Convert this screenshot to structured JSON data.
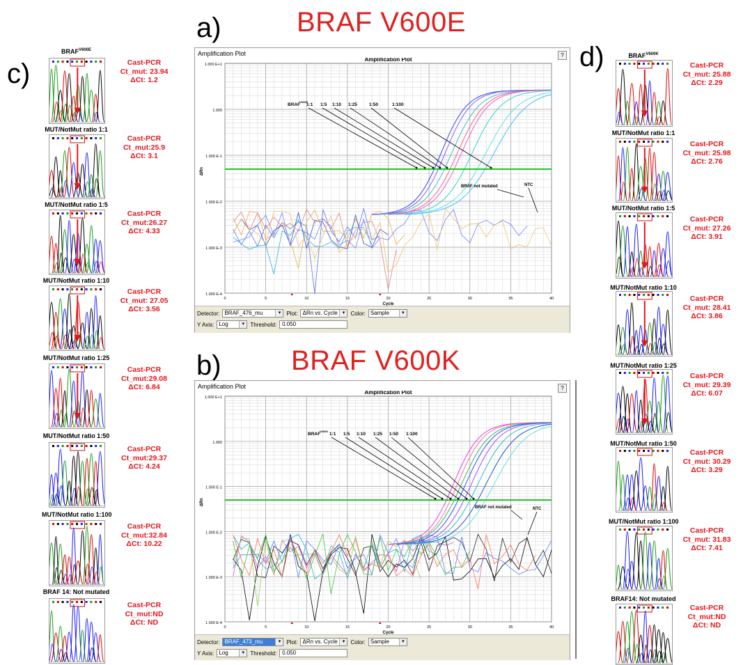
{
  "titles": {
    "a_letter": "a)",
    "a_title": "BRAF V600E",
    "b_letter": "b)",
    "b_title": "BRAF V600K",
    "c_letter": "c)",
    "d_letter": "d)"
  },
  "colors": {
    "red": "#e3161c",
    "threshold_green": "#1fbf1f"
  },
  "plot_a": {
    "window_title": "Amplification Plot",
    "plot_title": "Amplification Plot",
    "help": "?",
    "ylabel": "ΔRn",
    "xlabel": "Cycle",
    "yticks": [
      "1.000 E+1",
      "1.000",
      "1.000 E-1",
      "1.000 E-2",
      "1.000 E-3",
      "1.000 E-4"
    ],
    "xticks": [
      "0",
      "5",
      "10",
      "15",
      "20",
      "25",
      "30",
      "35",
      "40"
    ],
    "ann_braf": "BRAF",
    "ann_sup": "V600E",
    "ratios": [
      "1:1",
      "1:5",
      "1:10",
      "1:25",
      "1:50",
      "1:100"
    ],
    "not_mutated": "BRAF not mutated",
    "ntc": "NTC",
    "detector_label": "Detector:",
    "detector_value": "BRAF_476_mu",
    "plot_label": "Plot:",
    "plot_value": "ΔRn vs. Cycle",
    "color_label": "Color:",
    "color_value": "Sample",
    "yaxis_label": "Y Axis:",
    "yaxis_value": "Log",
    "threshold_label": "Threshold:",
    "threshold_value": "0.050"
  },
  "plot_b": {
    "window_title": "Amplification Plot",
    "plot_title": "Amplification Plot",
    "help": "?",
    "ylabel": "ΔRn",
    "xlabel": "Cycle",
    "yticks": [
      "1.000 E+1",
      "1.000",
      "1.000 E-1",
      "1.000 E-2",
      "1.000 E-3",
      "1.000 E-4"
    ],
    "xticks": [
      "0",
      "5",
      "10",
      "15",
      "20",
      "25",
      "30",
      "35",
      "40"
    ],
    "ann_braf": "BRAF",
    "ann_sup": "V600K",
    "ratios": [
      "1:1",
      "1:5",
      "1:10",
      "1:25",
      "1:50",
      "1:100"
    ],
    "not_mutated": "BRAF not mutated",
    "ntc": "NTC",
    "detector_label": "Detector:",
    "detector_value": "BRAF_473_mu",
    "plot_label": "Plot:",
    "plot_value": "ΔRn vs. Cycle",
    "color_label": "Color:",
    "color_value": "Sample",
    "yaxis_label": "Y Axis:",
    "yaxis_value": "Log",
    "threshold_label": "Threshold:",
    "threshold_value": "0.050"
  },
  "panel_c": [
    {
      "title": "BRAF",
      "sup": "V600E",
      "line1": "Cast-PCR",
      "line2": "Ct_mut: 23.94",
      "line3": "ΔCt: 1.2"
    },
    {
      "title": "MUT/NotMut ratio 1:1",
      "sup": "",
      "line1": "Cast-PCR",
      "line2": "Ct_mut:25.9",
      "line3": "ΔCt: 3.1"
    },
    {
      "title": "MUT/NotMut ratio 1:5",
      "sup": "",
      "line1": "Cast-PCR",
      "line2": "Ct_mut:26.27",
      "line3": "ΔCt: 4.33"
    },
    {
      "title": "MUT/NotMut ratio 1:10",
      "sup": "",
      "line1": "Cast-PCR",
      "line2": "Ct_mut: 27.05",
      "line3": "ΔCt: 3.56"
    },
    {
      "title": "MUT/NotMut ratio 1:25",
      "sup": "",
      "line1": "Cast-PCR",
      "line2": "Ct_mut:29.08",
      "line3": "ΔCt: 6.84"
    },
    {
      "title": "MUT/NotMut ratio 1:50",
      "sup": "",
      "line1": "Cast-PCR",
      "line2": "Ct_mut:29.37",
      "line3": "ΔCt: 4.24"
    },
    {
      "title": "MUT/NotMut ratio 1:100",
      "sup": "",
      "line1": "Cast-PCR",
      "line2": "Ct_mut:32.84",
      "line3": "ΔCt: 10.22"
    },
    {
      "title": "BRAF 14: Not mutated",
      "sup": "",
      "line1": "Cast-PCR",
      "line2": "Ct_mut:ND",
      "line3": "ΔCt: ND"
    }
  ],
  "panel_d": [
    {
      "title": "BRAF",
      "sup": "V600K",
      "line1": "Cast-PCR",
      "line2": "Ct_mut: 25.88",
      "line3": "ΔCt: 2.29"
    },
    {
      "title": "MUT/NotMut ratio 1:1",
      "sup": "",
      "line1": "Cast-PCR",
      "line2": "Ct_mut: 25.98",
      "line3": "ΔCt: 2.76"
    },
    {
      "title": "MUT/NotMut ratio 1:5",
      "sup": "",
      "line1": "Cast-PCR",
      "line2": "Ct_mut: 27.26",
      "line3": "ΔCt: 3.91"
    },
    {
      "title": "MUT/NotMut ratio 1:10",
      "sup": "",
      "line1": "Cast-PCR",
      "line2": "Ct_mut: 28.41",
      "line3": "ΔCt: 3.86"
    },
    {
      "title": "MUT/NotMut ratio 1:25",
      "sup": "",
      "line1": "Cast-PCR",
      "line2": "Ct_mut: 29.39",
      "line3": "ΔCt: 6.07"
    },
    {
      "title": "MUT/NotMut ratio 1:50",
      "sup": "",
      "line1": "Cast-PCR",
      "line2": "Ct_mut: 30.29",
      "line3": "ΔCt: 3.29"
    },
    {
      "title": "MUT/NotMut ratio 1:100",
      "sup": "",
      "line1": "Cast-PCR",
      "line2": "Ct_mut: 31.83",
      "line3": "ΔCt: 7.41"
    },
    {
      "title": "BRAF14: Not mutated",
      "sup": "",
      "line1": "Cast-PCR",
      "line2": "Ct_mut:ND",
      "line3": "ΔCt: ND"
    }
  ]
}
